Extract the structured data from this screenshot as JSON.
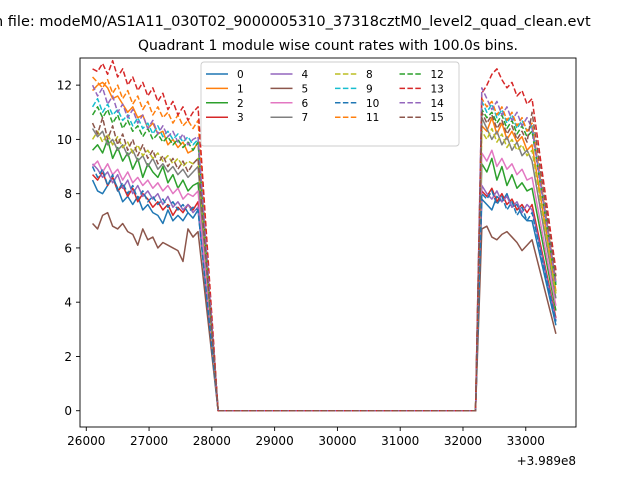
{
  "chart_data": {
    "type": "line",
    "suptitle": "n file: modeM0/AS1A11_030T02_9000005310_37318cztM0_level2_quad_clean.evt",
    "title": "Quadrant 1 module wise count rates with 100.0s bins.",
    "xlabel": "",
    "ylabel": "",
    "x_offset_label": "+3.989e8",
    "xlim": [
      25900,
      33800
    ],
    "ylim": [
      -0.6,
      13.0
    ],
    "x_ticks": [
      26000,
      27000,
      28000,
      29000,
      30000,
      31000,
      32000,
      33000
    ],
    "x_tick_labels": [
      "26000",
      "27000",
      "28000",
      "29000",
      "30000",
      "31000",
      "32000",
      "33000"
    ],
    "y_ticks": [
      0,
      2,
      4,
      6,
      8,
      10,
      12
    ],
    "y_tick_labels": [
      "0",
      "2",
      "4",
      "6",
      "8",
      "10",
      "12"
    ],
    "grid": false,
    "legend_position": "upper-center",
    "legend_columns": 4,
    "gap": {
      "x_start": 28100,
      "x_end": 32200,
      "value": 0
    },
    "series": [
      {
        "name": "0",
        "color": "#1f77b4",
        "dashed": false,
        "seg1": [
          8.5,
          8.1,
          8.0,
          8.3,
          8.6,
          8.2,
          7.7,
          7.9,
          7.6,
          7.9,
          7.4,
          7.6,
          7.3,
          7.2,
          6.9,
          7.4,
          7.0,
          7.2,
          7.0,
          7.3,
          7.1,
          7.4
        ],
        "seg2": [
          7.8,
          7.6,
          7.4,
          7.9,
          7.7,
          8.0,
          7.5,
          7.6,
          7.2,
          7.0,
          7.0
        ]
      },
      {
        "name": "1",
        "color": "#ff7f0e",
        "dashed": false,
        "seg1": [
          11.8,
          12.0,
          12.1,
          11.9,
          11.5,
          11.6,
          11.3,
          11.0,
          11.2,
          10.8,
          10.9,
          10.4,
          10.6,
          10.2,
          10.3,
          9.8,
          10.0,
          9.7,
          9.9,
          9.5,
          9.6,
          9.9
        ],
        "seg2": [
          10.5,
          10.3,
          10.8,
          10.2,
          10.6,
          10.0,
          10.3,
          9.9,
          10.1,
          9.6,
          9.8
        ]
      },
      {
        "name": "2",
        "color": "#2ca02c",
        "dashed": false,
        "seg1": [
          9.6,
          9.8,
          9.5,
          10.0,
          9.3,
          9.7,
          9.2,
          9.5,
          8.9,
          9.3,
          8.6,
          9.1,
          8.8,
          8.6,
          9.0,
          8.4,
          8.7,
          8.2,
          8.5,
          8.1,
          8.3,
          8.4
        ],
        "seg2": [
          9.1,
          8.8,
          9.3,
          8.5,
          9.0,
          8.3,
          8.7,
          8.2,
          8.4,
          8.1,
          8.2
        ]
      },
      {
        "name": "3",
        "color": "#d62728",
        "dashed": false,
        "seg1": [
          8.7,
          8.5,
          8.8,
          8.3,
          8.6,
          8.1,
          8.3,
          7.9,
          8.2,
          7.7,
          8.0,
          7.8,
          7.5,
          7.7,
          7.4,
          7.6,
          7.2,
          7.5,
          7.3,
          7.6,
          7.4,
          7.7
        ],
        "seg2": [
          8.1,
          7.9,
          8.2,
          7.7,
          8.0,
          7.6,
          7.8,
          7.4,
          7.6,
          7.3,
          7.6
        ]
      },
      {
        "name": "4",
        "color": "#9467bd",
        "dashed": false,
        "seg1": [
          9.1,
          8.9,
          8.6,
          8.8,
          8.4,
          8.7,
          8.2,
          8.5,
          8.0,
          8.3,
          7.9,
          8.1,
          7.8,
          8.0,
          7.6,
          7.9,
          7.5,
          7.7,
          7.4,
          7.6,
          7.3,
          7.5
        ],
        "seg2": [
          8.3,
          8.0,
          7.8,
          8.1,
          7.7,
          7.9,
          7.5,
          7.7,
          7.3,
          7.6,
          7.4
        ]
      },
      {
        "name": "5",
        "color": "#8c564b",
        "dashed": false,
        "seg1": [
          6.9,
          6.7,
          7.2,
          7.3,
          6.8,
          6.7,
          6.9,
          6.6,
          6.5,
          6.1,
          6.7,
          6.3,
          6.4,
          6.0,
          6.2,
          6.1,
          6.0,
          5.9,
          5.5,
          6.7,
          6.4,
          6.6
        ],
        "seg2": [
          6.7,
          6.8,
          6.4,
          6.3,
          6.5,
          6.6,
          6.4,
          6.2,
          5.9,
          6.1,
          6.3
        ]
      },
      {
        "name": "6",
        "color": "#e377c2",
        "dashed": false,
        "seg1": [
          9.0,
          9.2,
          8.8,
          9.1,
          8.7,
          8.9,
          8.5,
          8.8,
          8.4,
          8.6,
          8.3,
          8.5,
          8.2,
          8.4,
          8.1,
          8.3,
          8.0,
          8.2,
          7.8,
          8.0,
          7.9,
          8.1
        ],
        "seg2": [
          9.5,
          9.2,
          9.6,
          9.0,
          9.3,
          8.9,
          9.1,
          8.7,
          8.9,
          8.5,
          8.6
        ]
      },
      {
        "name": "7",
        "color": "#7f7f7f",
        "dashed": false,
        "seg1": [
          10.4,
          10.1,
          10.3,
          9.8,
          10.0,
          9.6,
          9.8,
          9.4,
          9.6,
          9.2,
          9.4,
          9.0,
          9.3,
          8.9,
          9.1,
          8.8,
          9.0,
          8.7,
          8.9,
          8.6,
          8.8,
          9.0
        ],
        "seg2": [
          10.8,
          10.4,
          10.0,
          10.3,
          9.8,
          10.1,
          9.6,
          9.9,
          9.4,
          9.6,
          9.2
        ]
      },
      {
        "name": "8",
        "color": "#bcbd22",
        "dashed": true,
        "seg1": [
          10.0,
          10.3,
          9.9,
          10.2,
          9.8,
          10.1,
          9.7,
          9.9,
          9.5,
          9.8,
          9.4,
          9.6,
          9.3,
          9.5,
          9.2,
          9.4,
          9.1,
          9.3,
          9.0,
          9.2,
          9.1,
          9.3
        ],
        "seg2": [
          10.3,
          10.0,
          10.4,
          9.9,
          10.2,
          9.7,
          10.0,
          9.6,
          9.8,
          9.4,
          9.6
        ]
      },
      {
        "name": "9",
        "color": "#17becf",
        "dashed": true,
        "seg1": [
          11.2,
          11.5,
          11.0,
          11.3,
          10.9,
          11.1,
          10.7,
          10.9,
          10.5,
          10.8,
          10.4,
          10.6,
          10.2,
          10.5,
          10.1,
          10.3,
          10.0,
          10.2,
          9.9,
          10.1,
          9.8,
          10.0
        ],
        "seg2": [
          11.4,
          11.0,
          11.3,
          10.8,
          11.1,
          10.6,
          10.9,
          10.4,
          10.7,
          10.3,
          10.5
        ]
      },
      {
        "name": "10",
        "color": "#1f77b4",
        "dashed": true,
        "seg1": [
          9.0,
          8.6,
          8.9,
          8.3,
          8.7,
          8.1,
          8.4,
          8.0,
          8.3,
          7.8,
          8.1,
          7.7,
          7.9,
          7.6,
          7.8,
          7.5,
          7.7,
          7.4,
          7.6,
          7.3,
          7.5,
          7.4
        ],
        "seg2": [
          8.0,
          7.8,
          8.1,
          7.6,
          7.9,
          7.4,
          7.7,
          7.2,
          7.5,
          7.0,
          7.3
        ]
      },
      {
        "name": "11",
        "color": "#ff7f0e",
        "dashed": true,
        "seg1": [
          12.3,
          12.1,
          11.9,
          12.2,
          11.7,
          12.0,
          11.5,
          11.8,
          11.3,
          11.6,
          11.1,
          11.4,
          10.9,
          11.2,
          10.8,
          11.0,
          10.6,
          10.9,
          10.5,
          10.7,
          10.4,
          10.7
        ],
        "seg2": [
          11.5,
          11.2,
          11.4,
          10.9,
          11.2,
          10.7,
          11.0,
          10.5,
          10.8,
          10.3,
          10.6
        ]
      },
      {
        "name": "12",
        "color": "#2ca02c",
        "dashed": true,
        "seg1": [
          10.9,
          11.2,
          10.8,
          11.1,
          10.6,
          10.9,
          10.4,
          10.7,
          10.3,
          10.5,
          10.1,
          10.4,
          10.0,
          10.2,
          9.9,
          10.1,
          9.8,
          10.0,
          9.7,
          9.9,
          9.6,
          9.9
        ],
        "seg2": [
          11.1,
          10.8,
          11.0,
          10.6,
          10.9,
          10.4,
          10.7,
          10.2,
          10.5,
          10.1,
          10.3
        ]
      },
      {
        "name": "13",
        "color": "#d62728",
        "dashed": true,
        "seg1": [
          12.6,
          12.5,
          12.8,
          12.4,
          12.9,
          12.3,
          12.6,
          12.0,
          12.3,
          11.8,
          12.1,
          11.6,
          11.9,
          11.4,
          11.7,
          11.1,
          11.4,
          10.9,
          11.2,
          10.7,
          11.0,
          11.2
        ],
        "seg2": [
          11.7,
          12.0,
          12.4,
          12.6,
          12.2,
          11.9,
          12.1,
          11.6,
          11.8,
          11.3,
          11.5
        ]
      },
      {
        "name": "14",
        "color": "#9467bd",
        "dashed": true,
        "seg1": [
          12.0,
          11.6,
          11.9,
          11.3,
          11.6,
          11.0,
          11.3,
          10.8,
          11.1,
          10.6,
          10.9,
          10.4,
          10.7,
          10.2,
          10.5,
          10.1,
          10.3,
          9.9,
          10.2,
          9.8,
          10.0,
          10.1
        ],
        "seg2": [
          11.9,
          11.5,
          11.1,
          11.4,
          10.9,
          11.2,
          10.7,
          11.0,
          10.5,
          10.8,
          10.4
        ]
      },
      {
        "name": "15",
        "color": "#8c564b",
        "dashed": true,
        "seg1": [
          10.6,
          10.2,
          10.8,
          10.0,
          10.5,
          9.8,
          10.2,
          9.6,
          10.0,
          9.4,
          9.8,
          9.3,
          9.6,
          9.1,
          9.4,
          9.0,
          9.3,
          8.9,
          9.2,
          8.8,
          9.1,
          9.3
        ],
        "seg2": [
          11.0,
          10.6,
          10.9,
          10.4,
          10.7,
          10.2,
          10.5,
          10.0,
          10.3,
          9.9,
          11.0
        ]
      }
    ]
  }
}
